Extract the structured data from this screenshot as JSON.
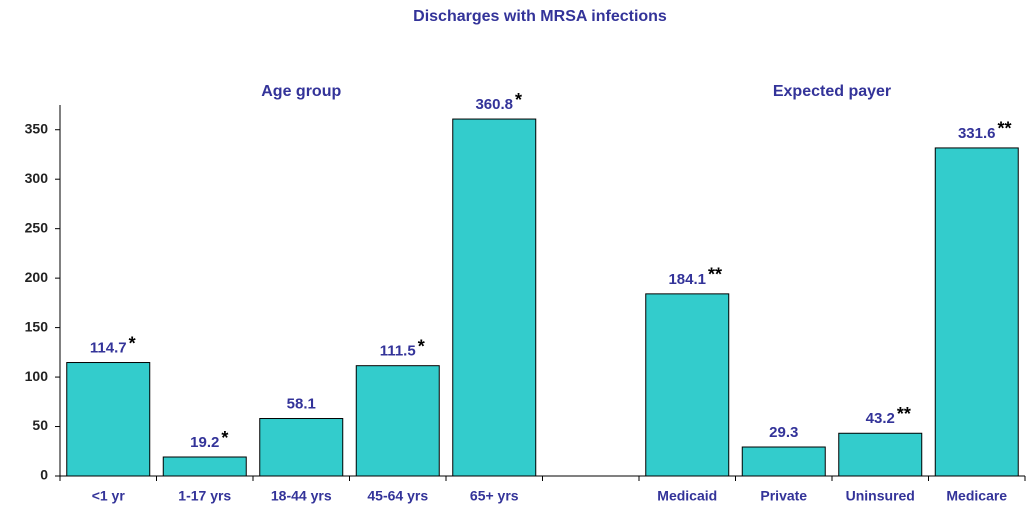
{
  "chart_data": {
    "type": "bar",
    "title": "Discharges with MRSA infections",
    "group_labels": [
      "Age group",
      "Expected payer"
    ],
    "categories": [
      "<1 yr",
      "1-17 yrs",
      "18-44 yrs",
      "45-64 yrs",
      "65+ yrs",
      null,
      "Medicaid",
      "Private",
      "Uninsured",
      "Medicare"
    ],
    "values": [
      114.7,
      19.2,
      58.1,
      111.5,
      360.8,
      null,
      184.1,
      29.3,
      43.2,
      331.6
    ],
    "markers": [
      "*",
      "*",
      null,
      "*",
      "*",
      null,
      "**",
      null,
      "**",
      "**"
    ],
    "color": "#33cccc",
    "ylim": [
      0,
      375
    ],
    "yticks": [
      0,
      50,
      100,
      150,
      200,
      250,
      300,
      350
    ],
    "grid": false
  }
}
